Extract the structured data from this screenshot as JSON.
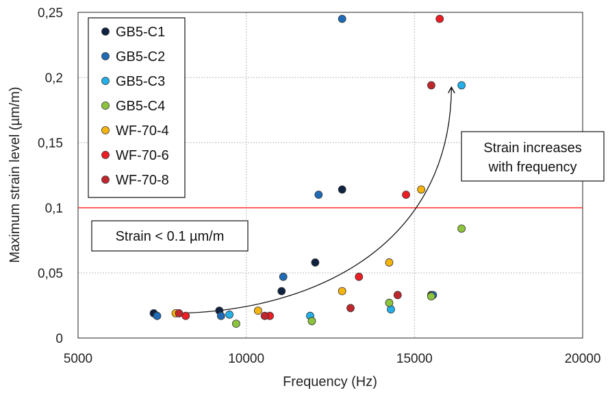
{
  "chart_data": {
    "type": "scatter",
    "xlabel": "Frequency (Hz)",
    "ylabel": "Maximum strain level (µm/m)",
    "xlim": [
      5000,
      20000
    ],
    "ylim": [
      0,
      0.25
    ],
    "x_ticks": [
      5000,
      10000,
      15000,
      20000
    ],
    "y_ticks": [
      0,
      0.05,
      0.1,
      0.15,
      0.2,
      0.25
    ],
    "x_tick_labels": [
      "5000",
      "10000",
      "15000",
      "20000"
    ],
    "y_tick_labels": [
      "0",
      "0,05",
      "0,1",
      "0,15",
      "0,2",
      "0,25"
    ],
    "grid": true,
    "legend_position": "top-left",
    "threshold": {
      "y": 0.1,
      "color": "#ff2a2a"
    },
    "annotations": {
      "low_strain": "Strain < 0.1 µm/m",
      "trend_line1": "Strain increases",
      "trend_line2": "with frequency"
    },
    "series": [
      {
        "name": "GB5-C1",
        "color": "#0f2340",
        "points": [
          [
            7250,
            0.019
          ],
          [
            9200,
            0.021
          ],
          [
            11050,
            0.036
          ],
          [
            12050,
            0.058
          ],
          [
            12850,
            0.114
          ],
          [
            15500,
            0.033
          ]
        ]
      },
      {
        "name": "GB5-C2",
        "color": "#1f6bb5",
        "points": [
          [
            7350,
            0.017
          ],
          [
            9250,
            0.017
          ],
          [
            11100,
            0.047
          ],
          [
            12150,
            0.11
          ],
          [
            12850,
            0.245
          ],
          [
            15550,
            0.033
          ]
        ]
      },
      {
        "name": "GB5-C3",
        "color": "#23b0e8",
        "points": [
          [
            9500,
            0.018
          ],
          [
            11900,
            0.017
          ],
          [
            14300,
            0.022
          ],
          [
            16400,
            0.194
          ]
        ]
      },
      {
        "name": "GB5-C4",
        "color": "#8cc43e",
        "points": [
          [
            9700,
            0.011
          ],
          [
            11950,
            0.013
          ],
          [
            14250,
            0.027
          ],
          [
            15500,
            0.032
          ],
          [
            16400,
            0.084
          ]
        ]
      },
      {
        "name": "WF-70-4",
        "color": "#f6b40f",
        "points": [
          [
            7900,
            0.019
          ],
          [
            10350,
            0.021
          ],
          [
            12850,
            0.036
          ],
          [
            14250,
            0.058
          ],
          [
            15200,
            0.114
          ]
        ]
      },
      {
        "name": "WF-70-6",
        "color": "#ec1e24",
        "points": [
          [
            8200,
            0.017
          ],
          [
            10700,
            0.017
          ],
          [
            13350,
            0.047
          ],
          [
            14750,
            0.11
          ],
          [
            15750,
            0.245
          ]
        ]
      },
      {
        "name": "WF-70-8",
        "color": "#c0272d",
        "points": [
          [
            8000,
            0.019
          ],
          [
            10550,
            0.017
          ],
          [
            13100,
            0.023
          ],
          [
            14500,
            0.033
          ],
          [
            15500,
            0.194
          ]
        ]
      }
    ]
  }
}
